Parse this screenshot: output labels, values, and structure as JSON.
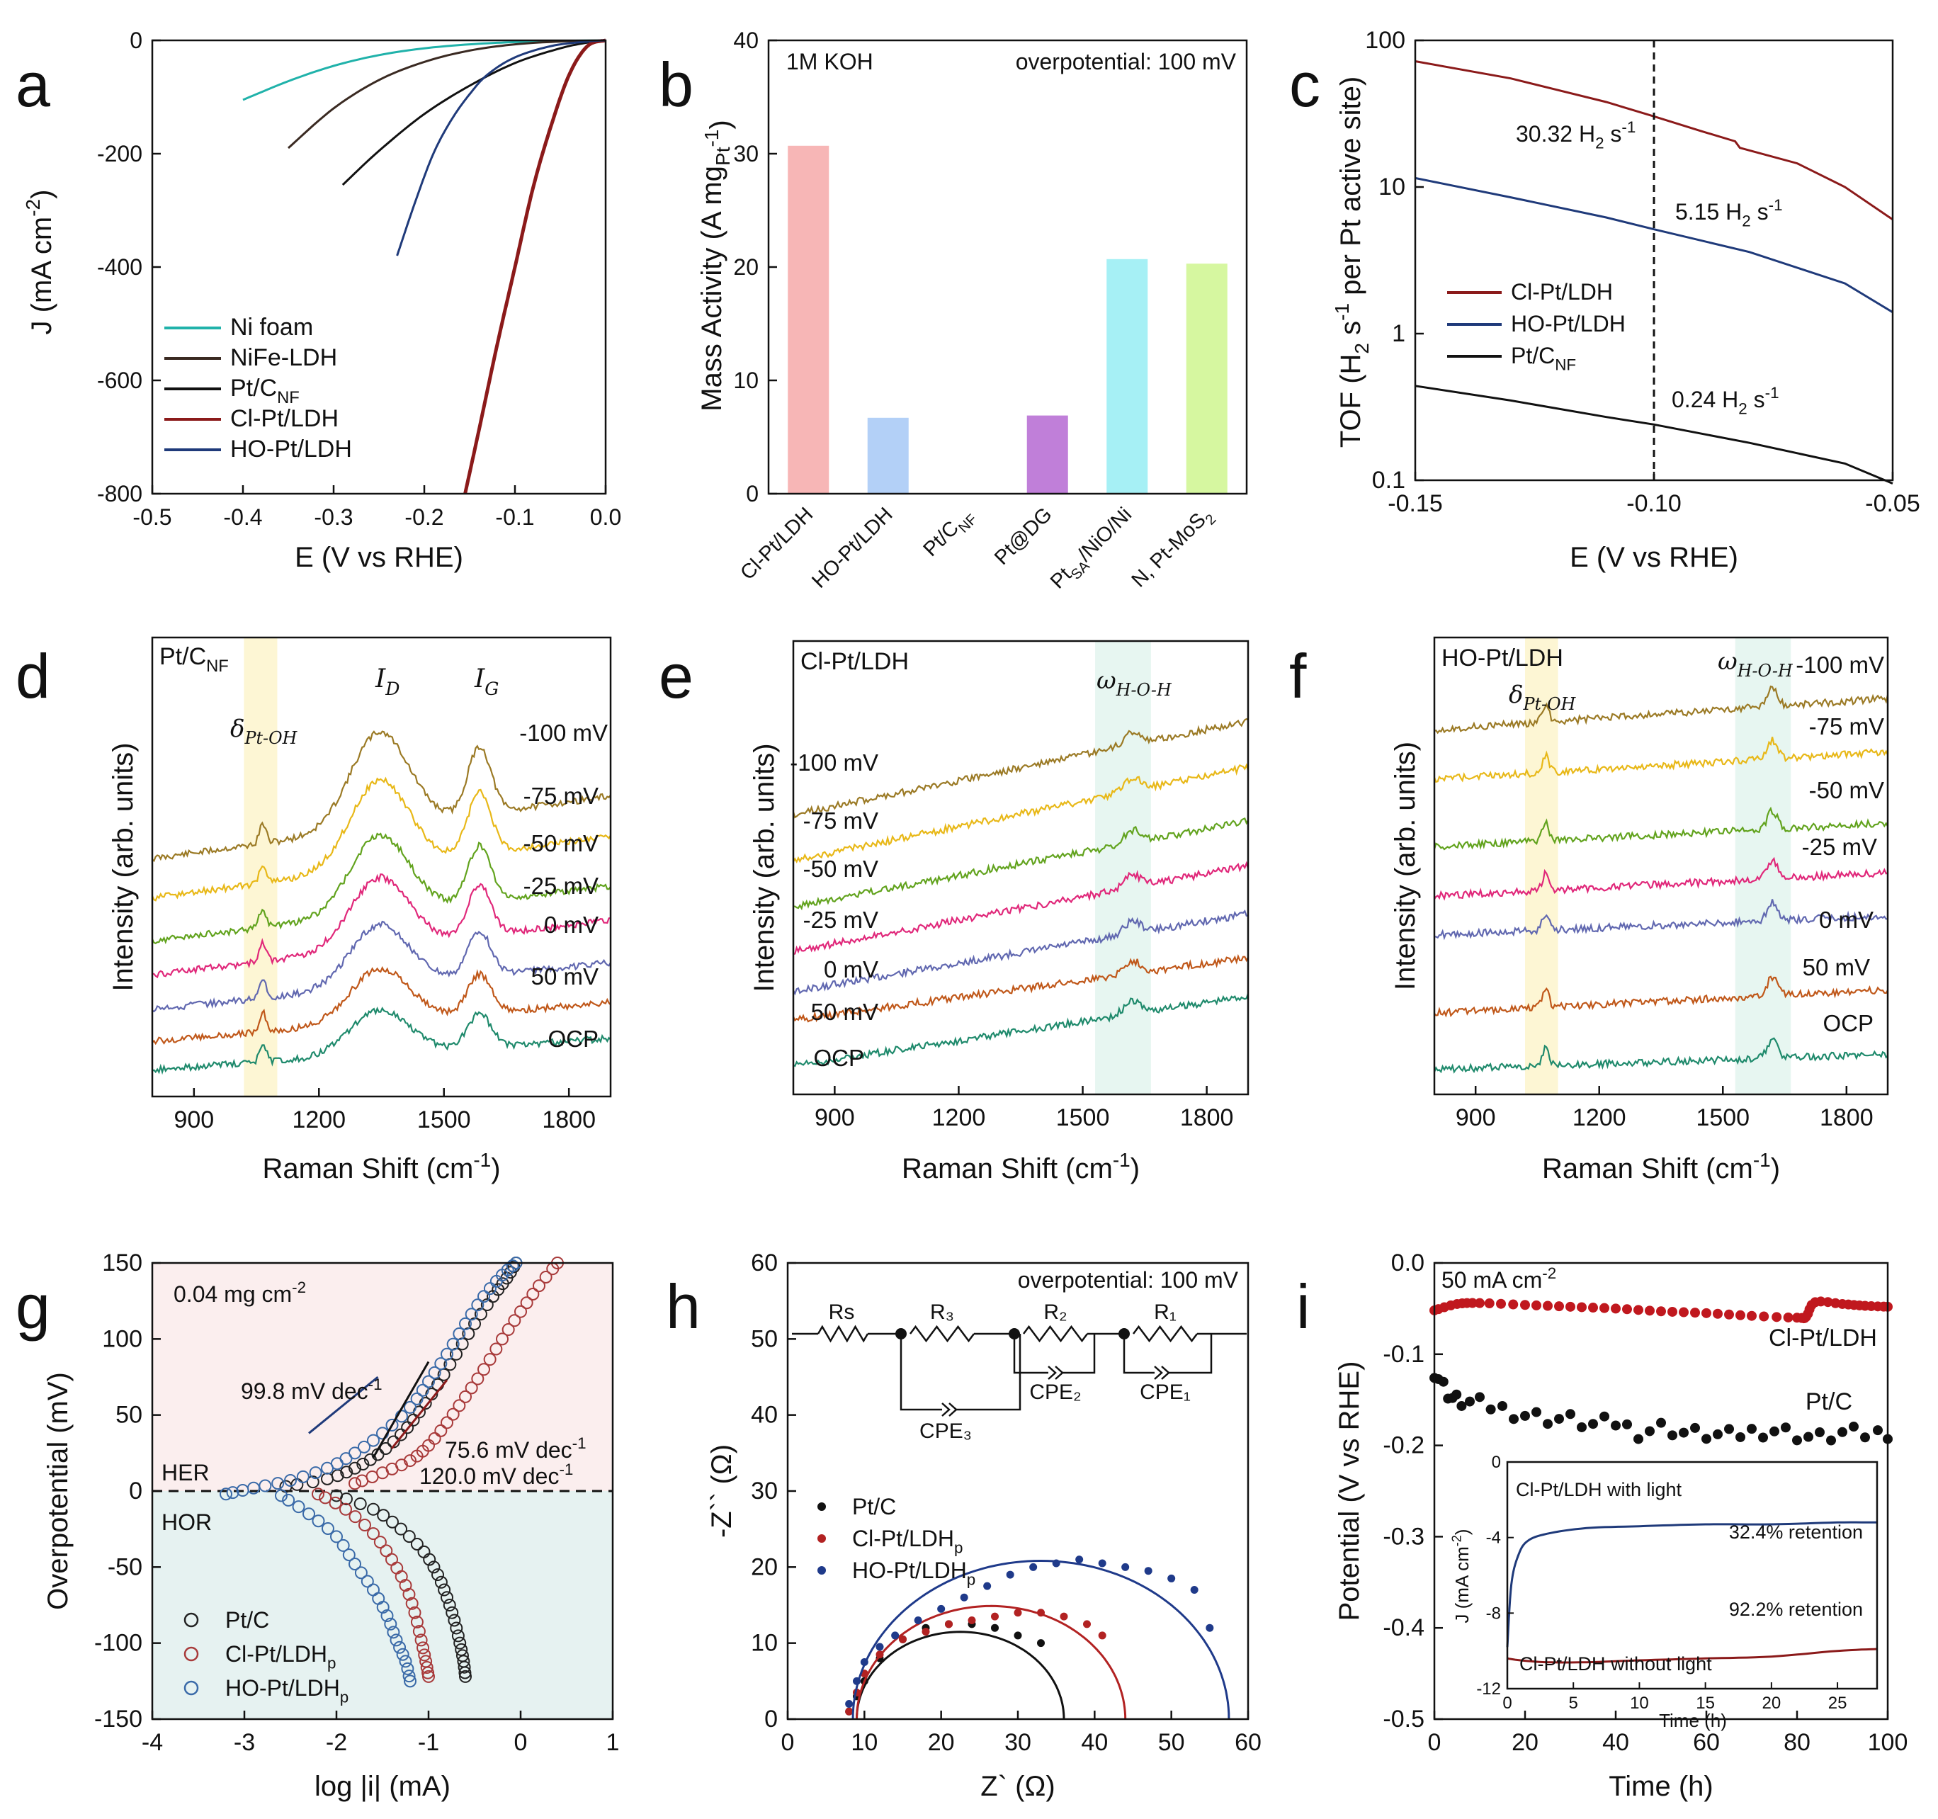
{
  "chart_data": [
    {
      "panel": "a",
      "type": "line",
      "xlabel": "E (V vs RHE)",
      "ylabel": "J (mA cm-2)",
      "xlim": [
        -0.5,
        0.0
      ],
      "ylim": [
        -800,
        0
      ],
      "xticks": [
        "-0.5",
        "-0.4",
        "-0.3",
        "-0.2",
        "-0.1",
        "0.0"
      ],
      "yticks": [
        "0",
        "-200",
        "-400",
        "-600",
        "-800"
      ],
      "legend": [
        "Ni foam",
        "NiFe-LDH",
        "Pt/C",
        "Cl-Pt/LDH",
        "HO-Pt/LDH"
      ],
      "legend_sub": [
        "",
        "",
        "NF",
        "",
        ""
      ],
      "series": [
        {
          "name": "Ni foam",
          "color": "#20b2aa",
          "x": [
            -0.4,
            -0.35,
            -0.3,
            -0.25,
            -0.2,
            -0.15,
            -0.1,
            -0.05,
            0.0
          ],
          "y": [
            -105,
            -72,
            -45,
            -26,
            -14,
            -7,
            -3,
            -1,
            0
          ]
        },
        {
          "name": "NiFe-LDH",
          "color": "#3a2a22",
          "x": [
            -0.35,
            -0.3,
            -0.25,
            -0.2,
            -0.15,
            -0.1,
            -0.05,
            0.0
          ],
          "y": [
            -190,
            -120,
            -70,
            -38,
            -18,
            -7,
            -2,
            0
          ]
        },
        {
          "name": "Pt/C",
          "color": "#111111",
          "x": [
            -0.29,
            -0.25,
            -0.2,
            -0.15,
            -0.1,
            -0.05,
            -0.02,
            0.0
          ],
          "y": [
            -255,
            -195,
            -130,
            -80,
            -40,
            -14,
            -4,
            0
          ]
        },
        {
          "name": "Cl-Pt/LDH",
          "color": "#8b1a1a",
          "x": [
            -0.155,
            -0.14,
            -0.12,
            -0.1,
            -0.08,
            -0.06,
            -0.04,
            -0.02,
            0.0
          ],
          "y": [
            -800,
            -690,
            -540,
            -400,
            -260,
            -150,
            -60,
            -10,
            0
          ]
        },
        {
          "name": "HO-Pt/LDH",
          "color": "#1f3a7a",
          "x": [
            -0.23,
            -0.21,
            -0.19,
            -0.17,
            -0.15,
            -0.13,
            -0.1,
            -0.06,
            -0.02,
            0.0
          ],
          "y": [
            -380,
            -285,
            -200,
            -140,
            -95,
            -60,
            -30,
            -10,
            -2,
            0
          ]
        }
      ]
    },
    {
      "panel": "b",
      "type": "bar",
      "ylabel": "Mass Activity (A mgPt-1)",
      "ylim": [
        0,
        40
      ],
      "yticks": [
        "0",
        "10",
        "20",
        "30",
        "40"
      ],
      "annotations": [
        "1M KOH",
        "overpotential: 100 mV"
      ],
      "categories": [
        "Cl-Pt/LDH",
        "HO-Pt/LDH",
        "Pt/CNF",
        "Pt@DG",
        "PtSA/NiO/Ni",
        "N, Pt-MoS2"
      ],
      "values": [
        30.7,
        6.7,
        0.05,
        6.9,
        20.7,
        20.3
      ],
      "colors": [
        "#f7b6b6",
        "#b3d0f7",
        "#999999",
        "#c07fd9",
        "#a6f0f5",
        "#d6f7a0"
      ]
    },
    {
      "panel": "c",
      "type": "line",
      "scale": "log",
      "xlabel": "E (V vs RHE)",
      "ylabel": "TOF (H2 s-1 per Pt active site)",
      "xlim": [
        -0.15,
        -0.05
      ],
      "ylim": [
        0.1,
        100
      ],
      "xticks": [
        "-0.15",
        "-0.10",
        "-0.05"
      ],
      "yticks": [
        "0.1",
        "1",
        "10",
        "100"
      ],
      "annotations": [
        "30.32 H2 s-1",
        "5.15 H2 s-1",
        "0.24 H2 s-1"
      ],
      "legend": [
        "Cl-Pt/LDH",
        "HO-Pt/LDH",
        "Pt/C"
      ],
      "series": [
        {
          "name": "Cl-Pt/LDH",
          "color": "#8b1a1a",
          "x": [
            -0.15,
            -0.13,
            -0.11,
            -0.1,
            -0.09,
            -0.083,
            -0.082,
            -0.07,
            -0.06,
            -0.05
          ],
          "y": [
            72,
            55,
            38,
            30.3,
            24,
            20.5,
            18.5,
            14.5,
            10,
            6
          ]
        },
        {
          "name": "HO-Pt/LDH",
          "color": "#1f3a7a",
          "x": [
            -0.15,
            -0.13,
            -0.11,
            -0.1,
            -0.08,
            -0.06,
            -0.05
          ],
          "y": [
            11.5,
            8.5,
            6.2,
            5.15,
            3.6,
            2.2,
            1.4
          ]
        },
        {
          "name": "Pt/C",
          "color": "#111111",
          "x": [
            -0.15,
            -0.13,
            -0.11,
            -0.1,
            -0.08,
            -0.06,
            -0.05
          ],
          "y": [
            0.44,
            0.35,
            0.27,
            0.24,
            0.18,
            0.13,
            0.095
          ]
        }
      ]
    },
    {
      "panel": "d",
      "type": "line",
      "xlabel": "Raman Shift (cm-1)",
      "ylabel": "Intensity (arb. units)",
      "xticks": [
        "900",
        "1200",
        "1500",
        "1800"
      ],
      "label": "Pt/CNF",
      "peaks": [
        "δPt-OH",
        "ID",
        "IG"
      ],
      "traces": [
        "-100 mV",
        "-75 mV",
        "-50 mV",
        "-25 mV",
        "0 mV",
        "50 mV",
        "OCP"
      ]
    },
    {
      "panel": "e",
      "type": "line",
      "xlabel": "Raman Shift (cm-1)",
      "ylabel": "Intensity (arb. units)",
      "xticks": [
        "900",
        "1200",
        "1500",
        "1800"
      ],
      "label": "Cl-Pt/LDH",
      "peaks": [
        "ωH-O-H"
      ],
      "traces": [
        "-100 mV",
        "-75 mV",
        "-50 mV",
        "-25 mV",
        "0 mV",
        "50 mV",
        "OCP"
      ]
    },
    {
      "panel": "f",
      "type": "line",
      "xlabel": "Raman Shift (cm-1)",
      "ylabel": "Intensity (arb. units)",
      "xticks": [
        "900",
        "1200",
        "1500",
        "1800"
      ],
      "label": "HO-Pt/LDH",
      "peaks": [
        "δPt-OH",
        "ωH-O-H"
      ],
      "traces": [
        "-100 mV",
        "-75 mV",
        "-50 mV",
        "-25 mV",
        "0 mV",
        "50 mV",
        "OCP"
      ]
    },
    {
      "panel": "g",
      "type": "scatter",
      "xlabel": "log |i| (mA)",
      "ylabel": "Overpotential (mV)",
      "xlim": [
        -4,
        1
      ],
      "ylim": [
        -150,
        150
      ],
      "xticks": [
        "-4",
        "-3",
        "-2",
        "-1",
        "0",
        "1"
      ],
      "yticks": [
        "150",
        "100",
        "50",
        "0",
        "-50",
        "-100",
        "-150"
      ],
      "annotations": [
        "0.04 mg cm-2",
        "99.8 mV dec-1",
        "75.6 mV dec-1",
        "120.0 mV dec-1",
        "HER",
        "HOR"
      ],
      "legend": [
        "Pt/C",
        "Cl-Pt/LDHp",
        "HO-Pt/LDHp"
      ],
      "series": [
        {
          "name": "Pt/C",
          "color": "#222222",
          "x": [
            -2.55,
            -2.1,
            -1.8,
            -1.55,
            -1.3,
            -1.1,
            -0.9,
            -0.7,
            -0.5,
            -0.3,
            -0.15,
            -0.05,
            -2.0,
            -1.6,
            -1.3,
            -1.05,
            -0.9,
            -0.8,
            -0.72,
            -0.66,
            -0.62,
            -0.6
          ],
          "y": [
            3,
            8,
            15,
            24,
            37,
            52,
            70,
            90,
            110,
            128,
            140,
            150,
            -3,
            -12,
            -25,
            -40,
            -55,
            -70,
            -85,
            -100,
            -112,
            -122
          ]
        },
        {
          "name": "Cl-Pt/LDHp",
          "color": "#a83a3a",
          "x": [
            -1.8,
            -1.5,
            -1.2,
            -1.0,
            -0.8,
            -0.6,
            -0.4,
            -0.2,
            0.0,
            0.2,
            0.4,
            -2.2,
            -1.9,
            -1.6,
            -1.4,
            -1.25,
            -1.15,
            -1.08,
            -1.03,
            -1.0
          ],
          "y": [
            5,
            12,
            20,
            30,
            45,
            62,
            80,
            100,
            118,
            135,
            150,
            -2,
            -12,
            -28,
            -45,
            -62,
            -80,
            -98,
            -112,
            -122
          ]
        },
        {
          "name": "HO-Pt/LDHp",
          "color": "#3a6aa8",
          "x": [
            -3.2,
            -2.9,
            -2.5,
            -2.1,
            -1.8,
            -1.5,
            -1.2,
            -1.0,
            -0.8,
            -0.6,
            -0.4,
            -0.2,
            -0.05,
            -2.6,
            -2.3,
            -2.0,
            -1.8,
            -1.6,
            -1.45,
            -1.35,
            -1.25,
            -1.2
          ],
          "y": [
            -2,
            2,
            7,
            15,
            25,
            38,
            55,
            72,
            90,
            110,
            128,
            142,
            150,
            -3,
            -15,
            -30,
            -48,
            -65,
            -82,
            -98,
            -112,
            -125
          ]
        }
      ]
    },
    {
      "panel": "h",
      "type": "scatter",
      "xlabel": "Z` (Ω)",
      "ylabel": "-Z`` (Ω)",
      "xlim": [
        0,
        60
      ],
      "ylim": [
        0,
        60
      ],
      "xticks": [
        "0",
        "10",
        "20",
        "30",
        "40",
        "50",
        "60"
      ],
      "yticks": [
        "0",
        "10",
        "20",
        "30",
        "40",
        "50",
        "60"
      ],
      "annotations": [
        "overpotential: 100 mV",
        "Rs",
        "R3",
        "R2",
        "R1",
        "CPE2",
        "CPE1",
        "CPE3"
      ],
      "legend": [
        "Pt/C",
        "Cl-Pt/LDHp",
        "HO-Pt/LDHp"
      ],
      "series": [
        {
          "name": "Pt/C",
          "color": "#111111",
          "center": 22.5,
          "radius": 13.5,
          "points": [
            [
              8,
              1
            ],
            [
              9,
              3
            ],
            [
              10,
              5
            ],
            [
              12,
              8
            ],
            [
              15,
              10.5
            ],
            [
              18,
              12
            ],
            [
              21,
              12.5
            ],
            [
              24,
              12.5
            ],
            [
              27,
              12
            ],
            [
              30,
              11
            ],
            [
              33,
              10
            ]
          ]
        },
        {
          "name": "Cl-Pt/LDHp",
          "color": "#b22222",
          "center": 26.5,
          "radius": 17.5,
          "points": [
            [
              8,
              1
            ],
            [
              9,
              3.5
            ],
            [
              10,
              6
            ],
            [
              12,
              8.5
            ],
            [
              15,
              10.5
            ],
            [
              18,
              11.5
            ],
            [
              21,
              12.5
            ],
            [
              24,
              13
            ],
            [
              27,
              13.5
            ],
            [
              30,
              14
            ],
            [
              33,
              14
            ],
            [
              36,
              13.5
            ],
            [
              39,
              12.5
            ],
            [
              41,
              11
            ]
          ]
        },
        {
          "name": "HO-Pt/LDHp",
          "color": "#1f3a8a",
          "center": 33,
          "radius": 24.5,
          "points": [
            [
              8,
              2
            ],
            [
              9,
              5
            ],
            [
              10,
              7.5
            ],
            [
              12,
              9.5
            ],
            [
              14,
              11
            ],
            [
              17,
              13
            ],
            [
              20,
              14.5
            ],
            [
              23,
              16
            ],
            [
              26,
              17.5
            ],
            [
              29,
              19
            ],
            [
              32,
              20
            ],
            [
              35,
              20.5
            ],
            [
              38,
              21
            ],
            [
              41,
              20.5
            ],
            [
              44,
              20
            ],
            [
              47,
              19.5
            ],
            [
              50,
              18.5
            ],
            [
              53,
              17
            ],
            [
              55,
              12
            ]
          ]
        }
      ]
    },
    {
      "panel": "i",
      "type": "scatter",
      "xlabel": "Time (h)",
      "ylabel": "Potential (V vs RHE)",
      "xlim": [
        0,
        100
      ],
      "ylim": [
        -0.5,
        0.0
      ],
      "xticks": [
        "0",
        "20",
        "40",
        "60",
        "80",
        "100"
      ],
      "yticks": [
        "0.0",
        "-0.1",
        "-0.2",
        "-0.3",
        "-0.4",
        "-0.5"
      ],
      "annotations": [
        "50 mA cm-2",
        "Cl-Pt/LDH",
        "Pt/C"
      ],
      "series": [
        {
          "name": "Cl-Pt/LDH",
          "color": "#c0181e",
          "x": [
            0,
            5,
            10,
            20,
            30,
            40,
            50,
            60,
            70,
            80,
            82,
            84,
            90,
            95,
            100
          ],
          "y": [
            -0.052,
            -0.045,
            -0.044,
            -0.046,
            -0.048,
            -0.05,
            -0.053,
            -0.055,
            -0.058,
            -0.06,
            -0.059,
            -0.043,
            -0.045,
            -0.047,
            -0.048
          ]
        },
        {
          "name": "Pt/C",
          "color": "#111111",
          "x": [
            0,
            2,
            4,
            6,
            10,
            15,
            20,
            25,
            30,
            35,
            40,
            45,
            50,
            55,
            60,
            65,
            70,
            75,
            80,
            85,
            90,
            95,
            100
          ],
          "y": [
            -0.118,
            -0.135,
            -0.148,
            -0.152,
            -0.155,
            -0.16,
            -0.166,
            -0.17,
            -0.172,
            -0.178,
            -0.175,
            -0.185,
            -0.18,
            -0.186,
            -0.188,
            -0.19,
            -0.185,
            -0.183,
            -0.188,
            -0.192,
            -0.187,
            -0.188,
            -0.185
          ]
        }
      ],
      "inset": {
        "xlabel": "Time (h)",
        "ylabel": "J (mA cm-2)",
        "xlim": [
          0,
          28
        ],
        "ylim": [
          -12,
          0
        ],
        "xticks": [
          "0",
          "5",
          "10",
          "15",
          "20",
          "25"
        ],
        "yticks": [
          "0",
          "-4",
          "-8",
          "-12"
        ],
        "annotations": [
          "Cl-Pt/LDH with light",
          "32.4% retention",
          "92.2% retention",
          "Cl-Pt/LDH without light"
        ],
        "series": [
          {
            "name": "Cl-Pt/LDH with light",
            "color": "#1f3a7a",
            "x": [
              0,
              0.3,
              0.8,
              1.5,
              3,
              6,
              10,
              15,
              20,
              25,
              28
            ],
            "y": [
              -9.8,
              -6.5,
              -5.0,
              -4.2,
              -3.8,
              -3.5,
              -3.4,
              -3.3,
              -3.3,
              -3.2,
              -3.2
            ]
          },
          {
            "name": "Cl-Pt/LDH without light",
            "color": "#8b1a1a",
            "x": [
              0,
              1,
              3,
              6,
              10,
              15,
              20,
              25,
              28
            ],
            "y": [
              -10.4,
              -10.5,
              -10.6,
              -10.6,
              -10.5,
              -10.4,
              -10.3,
              -10.0,
              -9.9
            ]
          }
        ]
      }
    }
  ],
  "panel_letters": [
    "a",
    "b",
    "c",
    "d",
    "e",
    "f",
    "g",
    "h",
    "i"
  ]
}
